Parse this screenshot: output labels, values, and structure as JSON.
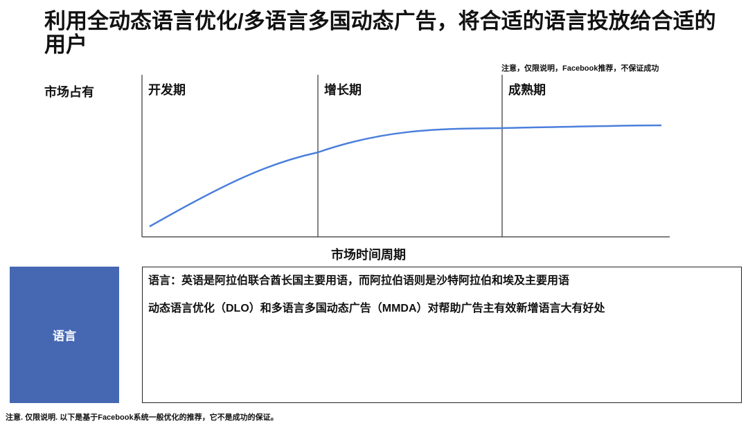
{
  "title": "利用全动态语言优化/多语言多国动态广告，将合适的语言投放给合适的用户",
  "note_top": "注意，仅限说明，Facebook推荐，不保证成功",
  "chart_data": {
    "type": "line",
    "ylabel": "市场占有",
    "xlabel": "市场时间周期",
    "phases": [
      "开发期",
      "增长期",
      "成熟期"
    ],
    "grid": false,
    "legend": "none",
    "curve_color": "#4a7fdc"
  },
  "language_box": {
    "label": "语言",
    "color": "#4668b3"
  },
  "info": {
    "line1": "语言：英语是阿拉伯联合酋长国主要用语，而阿拉伯语则是沙特阿拉伯和埃及主要用语",
    "line2": "动态语言优化（DLO）和多语言多国动态广告（MMDA）对帮助广告主有效新增语言大有好处"
  },
  "note_bottom": "注意. 仅限说明. 以下是基于Facebook系统一般优化的推荐，它不是成功的保证。"
}
